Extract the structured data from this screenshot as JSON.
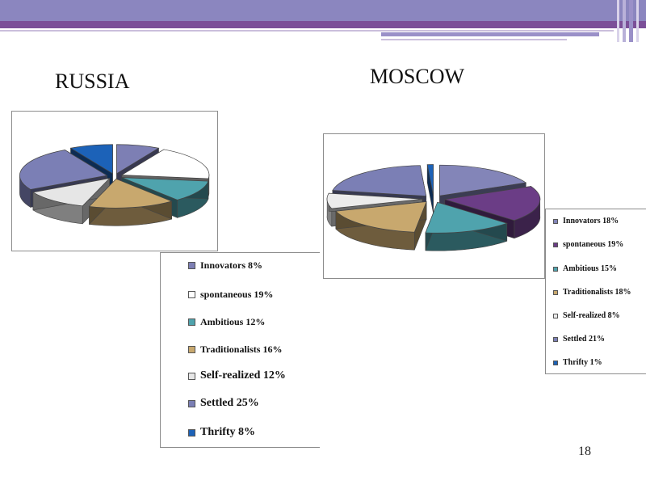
{
  "slide": {
    "page_number": "18"
  },
  "chart_data": [
    {
      "type": "pie",
      "title": "RUSSIA",
      "slices": [
        {
          "label": "Innovators",
          "value": 8,
          "color": "#7d7fb4"
        },
        {
          "label": "spontaneous",
          "value": 19,
          "color": "#ffffff"
        },
        {
          "label": "Ambitious",
          "value": 12,
          "color": "#4fa3ad"
        },
        {
          "label": "Traditionalists",
          "value": 16,
          "color": "#c8a86e"
        },
        {
          "label": "Self-realized",
          "value": 12,
          "color": "#e6e6e6"
        },
        {
          "label": "Settled",
          "value": 25,
          "color": "#7b7fb5"
        },
        {
          "label": "Thrifty",
          "value": 8,
          "color": "#1c62b8"
        }
      ],
      "legend": [
        {
          "text": "Innovators 8%",
          "color": "#7d7fb4"
        },
        {
          "text": "spontaneous 19%",
          "color": "#ffffff"
        },
        {
          "text": "Ambitious 12%",
          "color": "#4fa3ad"
        },
        {
          "text": "Traditionalists 16%",
          "color": "#c8a86e"
        },
        {
          "text": "Self-realized 12%",
          "color": "#e6e6e6"
        },
        {
          "text": "Settled  25%",
          "color": "#7b7fb5"
        },
        {
          "text": "Thrifty 8%",
          "color": "#1c62b8"
        }
      ]
    },
    {
      "type": "pie",
      "title": "MOSCOW",
      "slices": [
        {
          "label": "Innovators",
          "value": 18,
          "color": "#8385b8"
        },
        {
          "label": "spontaneous",
          "value": 19,
          "color": "#6b3d86"
        },
        {
          "label": "Ambitious",
          "value": 15,
          "color": "#4fa3ad"
        },
        {
          "label": "Traditionalists",
          "value": 18,
          "color": "#c8a86e"
        },
        {
          "label": "Self-realized",
          "value": 8,
          "color": "#ececec"
        },
        {
          "label": "Settled",
          "value": 21,
          "color": "#7b7fb5"
        },
        {
          "label": "Thrifty",
          "value": 1,
          "color": "#1c62b8"
        }
      ],
      "legend": [
        {
          "text": "Innovators 18%",
          "color": "#8385b8"
        },
        {
          "text": "spontaneous 19%",
          "color": "#6b3d86"
        },
        {
          "text": "Ambitious 15%",
          "color": "#4fa3ad"
        },
        {
          "text": "Traditionalists 18%",
          "color": "#c8a86e"
        },
        {
          "text": "Self-realized 8%",
          "color": "#ececec"
        },
        {
          "text": "Settled 21%",
          "color": "#7b7fb5"
        },
        {
          "text": "Thrifty 1%",
          "color": "#1c62b8"
        }
      ]
    }
  ]
}
